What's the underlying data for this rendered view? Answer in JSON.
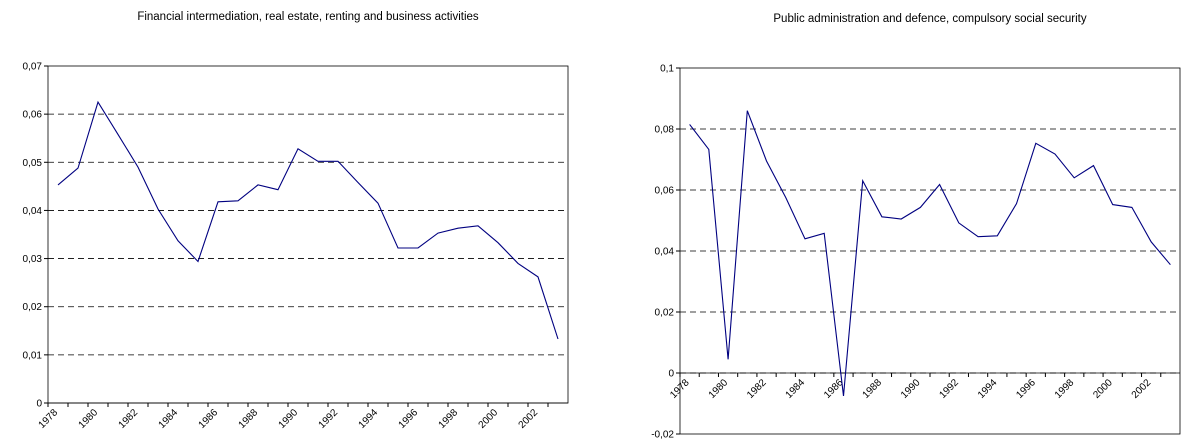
{
  "chart_data": [
    {
      "type": "line",
      "title": "Financial intermediation, real estate, renting and business activities",
      "categories": [
        "1978",
        null,
        "1980",
        null,
        "1982",
        null,
        "1984",
        null,
        "1986",
        null,
        "1988",
        null,
        "1990",
        null,
        "1992",
        null,
        "1994",
        null,
        "1996",
        null,
        "1998",
        null,
        "2000",
        null,
        "2002",
        null
      ],
      "values": [
        0.0453,
        0.0488,
        0.0625,
        0.0558,
        0.049,
        0.0403,
        0.0337,
        0.0294,
        0.0418,
        0.042,
        0.0453,
        0.0443,
        0.0528,
        0.0502,
        0.0502,
        0.0458,
        0.0415,
        0.0322,
        0.0322,
        0.0353,
        0.0363,
        0.0368,
        0.0333,
        0.029,
        0.0262,
        0.0133
      ],
      "color": "#000080",
      "ylim": [
        0,
        0.07
      ],
      "yticks": [
        0,
        {
          "value": 0.01,
          "label": "0,01"
        },
        {
          "value": 0.02,
          "label": "0,02"
        },
        {
          "value": 0.03,
          "label": "0,03"
        },
        {
          "value": 0.04,
          "label": "0,04"
        },
        {
          "value": 0.05,
          "label": "0,05"
        },
        {
          "value": 0.06,
          "label": "0,06"
        },
        {
          "value": 0.07,
          "label": "0,07"
        }
      ],
      "grid": true
    },
    {
      "type": "line",
      "title": "Public administration and defence, compulsory social security",
      "categories": [
        "1978",
        null,
        "1980",
        null,
        "1982",
        null,
        "1984",
        null,
        "1986",
        null,
        "1988",
        null,
        "1990",
        null,
        "1992",
        null,
        "1994",
        null,
        "1996",
        null,
        "1998",
        null,
        "2000",
        null,
        "2002",
        null
      ],
      "values": [
        0.0815,
        0.0733,
        0.0045,
        0.086,
        0.0695,
        0.0575,
        0.044,
        0.0458,
        -0.0075,
        0.063,
        0.0512,
        0.0505,
        0.0543,
        0.0618,
        0.0492,
        0.0447,
        0.045,
        0.0555,
        0.0753,
        0.0718,
        0.064,
        0.068,
        0.0552,
        0.0543,
        0.043,
        0.0355
      ],
      "color": "#000080",
      "ylim": [
        -0.02,
        0.1
      ],
      "yticks": [
        {
          "value": -0.02,
          "label": "-0,02"
        },
        0,
        {
          "value": 0.02,
          "label": "0,02"
        },
        {
          "value": 0.04,
          "label": "0,04"
        },
        {
          "value": 0.06,
          "label": "0,06"
        },
        {
          "value": 0.08,
          "label": "0,08"
        },
        {
          "value": 0.1,
          "label": "0,1"
        }
      ],
      "grid": true
    }
  ]
}
